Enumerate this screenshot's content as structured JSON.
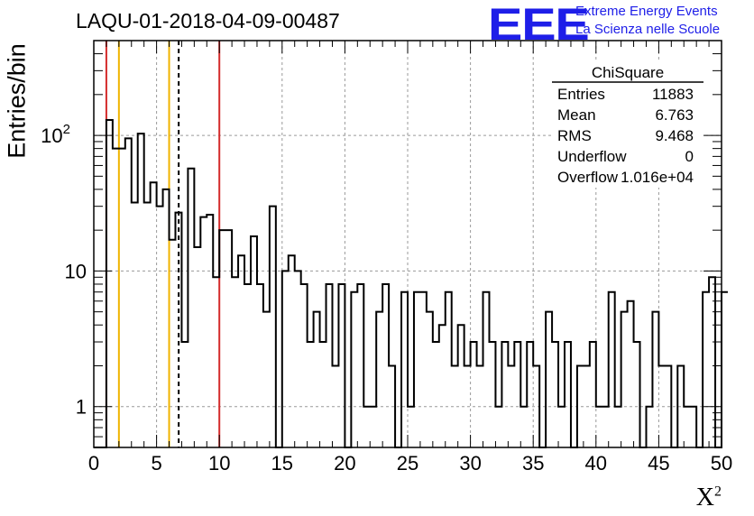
{
  "header": {
    "title": "LAQU-01-2018-04-09-00487",
    "logo_text": "EEE",
    "logo_line1": "Extreme Energy Events",
    "logo_line2": "La Scienza nelle Scuole",
    "logo_color": "#1e1ee8"
  },
  "chart_data": {
    "type": "histogram",
    "title": "LAQU-01-2018-04-09-00487",
    "xlabel": "X",
    "xlabel_superscript": "2",
    "ylabel": "Entries/bin",
    "xlim": [
      0,
      50
    ],
    "ylim": [
      0.5,
      500
    ],
    "yscale": "log",
    "grid": true,
    "x_ticks": [
      "0",
      "5",
      "10",
      "15",
      "20",
      "25",
      "30",
      "35",
      "40",
      "45",
      "50"
    ],
    "y_ticks": [
      {
        "value": 1,
        "label": "1"
      },
      {
        "value": 10,
        "label": "10"
      },
      {
        "value": 100,
        "label": "10",
        "exponent": "2"
      }
    ],
    "bin_width": 0.5,
    "bin_start": 0,
    "counts": [
      0,
      0,
      130,
      80,
      80,
      95,
      32,
      103,
      32,
      45,
      30,
      40,
      17,
      27,
      3,
      57,
      15,
      25,
      26,
      9,
      20,
      20,
      9,
      13,
      8,
      18,
      8,
      5,
      30,
      0,
      10,
      13,
      10,
      8,
      3,
      5,
      3,
      8,
      2,
      8,
      0,
      7,
      8,
      1,
      1,
      5,
      8,
      2,
      0,
      7,
      1,
      7,
      7,
      5,
      3,
      4,
      7,
      2,
      4,
      2,
      3,
      2,
      7,
      3,
      1,
      3,
      2,
      3,
      1,
      3,
      2,
      0,
      5,
      3,
      1,
      3,
      0,
      2,
      2,
      3,
      1,
      1,
      7,
      1,
      5,
      6,
      3,
      0,
      1,
      5,
      2,
      2,
      0,
      2,
      1,
      1,
      0,
      7,
      9,
      0,
      7
    ],
    "vertical_lines": [
      {
        "x": 1,
        "color": "#d42b2b",
        "style": "solid"
      },
      {
        "x": 2,
        "color": "#f0b400",
        "style": "solid"
      },
      {
        "x": 6,
        "color": "#f0b400",
        "style": "solid"
      },
      {
        "x": 6.763,
        "color": "#000000",
        "style": "dashed"
      },
      {
        "x": 10,
        "color": "#d42b2b",
        "style": "solid"
      }
    ],
    "stats_box": {
      "title": "ChiSquare",
      "rows": [
        {
          "label": "Entries",
          "value": "11883"
        },
        {
          "label": "Mean",
          "value": "6.763"
        },
        {
          "label": "RMS",
          "value": "9.468"
        },
        {
          "label": "Underflow",
          "value": "0"
        },
        {
          "label": "Overflow",
          "value": "1.016e+04"
        }
      ]
    }
  }
}
